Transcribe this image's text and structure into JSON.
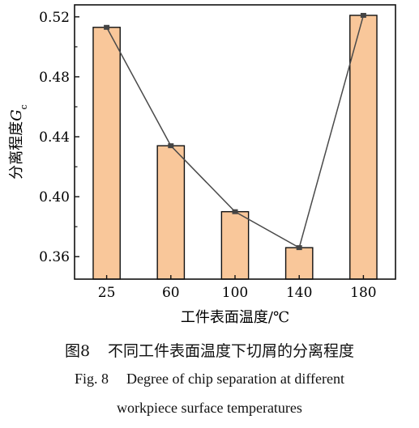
{
  "chart_data": {
    "type": "bar",
    "categories": [
      "25",
      "60",
      "100",
      "140",
      "180"
    ],
    "values": [
      0.513,
      0.434,
      0.39,
      0.366,
      0.521
    ],
    "line_overlay": true,
    "xlabel": "工件表面温度/℃",
    "ylabel_main": "分离程度",
    "ylabel_var": "G",
    "ylabel_sub": "c",
    "ylim": [
      0.345,
      0.528
    ],
    "yticks": [
      0.36,
      0.4,
      0.44,
      0.48,
      0.52
    ],
    "ytick_labels": [
      "0.36",
      "0.40",
      "0.44",
      "0.48",
      "0.52"
    ],
    "grid": false,
    "colors": {
      "bar_fill": "#f9c79a",
      "bar_stroke": "#111111",
      "line": "#4a4a4a",
      "marker": "#444444"
    }
  },
  "caption": {
    "cn_label": "图8",
    "cn_text": "不同工件表面温度下切屑的分离程度",
    "en_label": "Fig. 8",
    "en_line1": "Degree of chip separation at different",
    "en_line2": "workpiece surface temperatures"
  }
}
